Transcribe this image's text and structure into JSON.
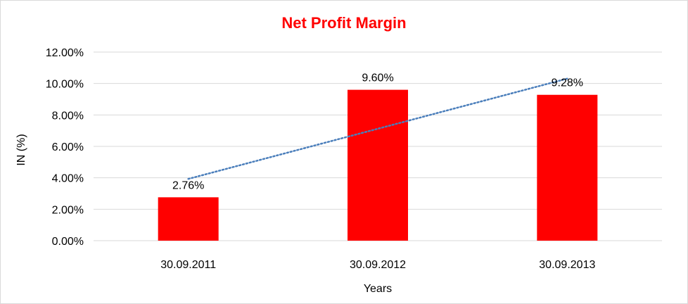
{
  "chart_data": {
    "type": "bar",
    "title": "Net Profit Margin",
    "xlabel": "Years",
    "ylabel": "IN (%)",
    "categories": [
      "30.09.2011",
      "30.09.2012",
      "30.09.2013"
    ],
    "values": [
      2.76,
      9.6,
      9.28
    ],
    "data_labels": [
      "2.76%",
      "9.60%",
      "9.28%"
    ],
    "ylim": [
      0,
      12
    ],
    "yticks": [
      0,
      2,
      4,
      6,
      8,
      10,
      12
    ],
    "ytick_labels": [
      "0.00%",
      "2.00%",
      "4.00%",
      "6.00%",
      "8.00%",
      "10.00%",
      "12.00%"
    ],
    "trendline": {
      "type": "linear",
      "style": "dotted",
      "start": 3.93,
      "end": 10.31
    },
    "grid": true,
    "legend": "none",
    "colors": {
      "bar": "#ff0000",
      "title": "#ff0000",
      "trendline": "#4a7ebb",
      "grid": "#d9d9d9"
    }
  }
}
